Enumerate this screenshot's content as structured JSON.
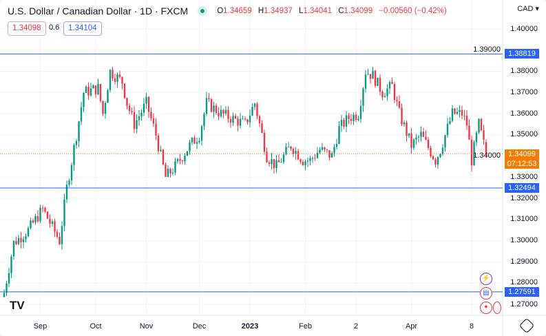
{
  "header": {
    "title": "U.S. Dollar / Canadian Dollar · 1D · FXCM",
    "ohlc": {
      "o_label": "O",
      "o": "1.34659",
      "h_label": "H",
      "h": "1.34937",
      "l_label": "L",
      "l": "1.34041",
      "c_label": "C",
      "c": "1.34099",
      "change": "−0.00560 (−0.42%)"
    }
  },
  "quote": {
    "sell": "1.34098",
    "spread": "0.6",
    "buy": "1.34104"
  },
  "currency": "CAD",
  "colors": {
    "up": "#089981",
    "down": "#f23645",
    "line": "#2962ff",
    "current": "#f57c00"
  },
  "chart_data": {
    "type": "candlestick",
    "symbol": "USDCAD",
    "ylim": [
      1.265,
      1.405
    ],
    "y_ticks": [
      "1.40000",
      "1.39000",
      "1.38000",
      "1.37000",
      "1.36000",
      "1.35000",
      "1.34000",
      "1.33000",
      "1.32000",
      "1.31000",
      "1.30000",
      "1.29000",
      "1.28000",
      "1.27000"
    ],
    "x_ticks": [
      {
        "label": "Sep",
        "day": 15
      },
      {
        "label": "Oct",
        "day": 38
      },
      {
        "label": "Nov",
        "day": 59
      },
      {
        "label": "Dec",
        "day": 81
      },
      {
        "label": "2023",
        "day": 102
      },
      {
        "label": "Feb",
        "day": 125
      },
      {
        "label": "2",
        "day": 146
      },
      {
        "label": "Apr",
        "day": 169
      },
      {
        "label": "8",
        "day": 194
      }
    ],
    "close_anchors": [
      [
        0,
        1.2755
      ],
      [
        4,
        1.299
      ],
      [
        10,
        1.305
      ],
      [
        16,
        1.315
      ],
      [
        23,
        1.3
      ],
      [
        26,
        1.325
      ],
      [
        30,
        1.35
      ],
      [
        33,
        1.37
      ],
      [
        39,
        1.372
      ],
      [
        41,
        1.36
      ],
      [
        44,
        1.38
      ],
      [
        49,
        1.375
      ],
      [
        51,
        1.365
      ],
      [
        54,
        1.355
      ],
      [
        59,
        1.365
      ],
      [
        63,
        1.35
      ],
      [
        67,
        1.33
      ],
      [
        71,
        1.335
      ],
      [
        77,
        1.345
      ],
      [
        81,
        1.35
      ],
      [
        84,
        1.365
      ],
      [
        90,
        1.36
      ],
      [
        96,
        1.357
      ],
      [
        100,
        1.355
      ],
      [
        104,
        1.365
      ],
      [
        109,
        1.34
      ],
      [
        113,
        1.335
      ],
      [
        119,
        1.345
      ],
      [
        124,
        1.338
      ],
      [
        127,
        1.338
      ],
      [
        131,
        1.343
      ],
      [
        136,
        1.34
      ],
      [
        139,
        1.353
      ],
      [
        143,
        1.358
      ],
      [
        147,
        1.36
      ],
      [
        150,
        1.38
      ],
      [
        153,
        1.378
      ],
      [
        157,
        1.37
      ],
      [
        161,
        1.373
      ],
      [
        164,
        1.36
      ],
      [
        169,
        1.345
      ],
      [
        173,
        1.35
      ],
      [
        179,
        1.338
      ],
      [
        181,
        1.343
      ],
      [
        186,
        1.36
      ],
      [
        190,
        1.36
      ],
      [
        192,
        1.355
      ],
      [
        194,
        1.338
      ],
      [
        197,
        1.355
      ],
      [
        200,
        1.34099
      ]
    ],
    "horizontal_lines": [
      {
        "price": "1.38819"
      },
      {
        "price": "1.32494"
      },
      {
        "price": "1.27591"
      }
    ],
    "last_price": "1.34099",
    "countdown": "07:12:53"
  }
}
